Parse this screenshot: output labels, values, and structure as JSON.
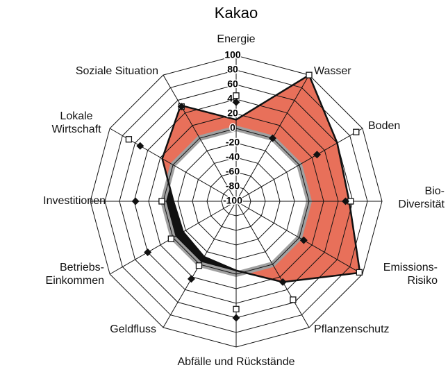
{
  "chart_data": {
    "type": "radar",
    "title": "Kakao",
    "categories": [
      "Energie",
      "Wasser",
      "Boden",
      "Bio-\nDiversität",
      "Emissions-\nRisiko",
      "Pflanzenschutz",
      "Abfälle und Rückstände",
      "Geldfluss",
      "Betriebs-\nEinkommen",
      "Investitionen",
      "Lokale\nWirtschaft",
      "Soziale Situation"
    ],
    "rlim": [
      -100,
      100
    ],
    "rticks": [
      -100,
      -80,
      -60,
      -40,
      -20,
      0,
      20,
      40,
      60,
      80,
      100
    ],
    "reference": {
      "value": 0,
      "color": "#a0a0a0"
    },
    "area": {
      "values": [
        12,
        100,
        60,
        55,
        96,
        28,
        -5,
        -12,
        -16,
        -14,
        17,
        52
      ],
      "positive_color": "#e8705a",
      "negative_color": "#111111"
    },
    "series": [
      {
        "marker": "square",
        "color": "#ffffff",
        "values": [
          45,
          100,
          90,
          57,
          95,
          56,
          48,
          2,
          3,
          2,
          70,
          50
        ]
      },
      {
        "marker": "diamond",
        "color": "#111111",
        "values": [
          36,
          0,
          28,
          50,
          7,
          28,
          60,
          23,
          40,
          38,
          52,
          50
        ]
      }
    ]
  }
}
